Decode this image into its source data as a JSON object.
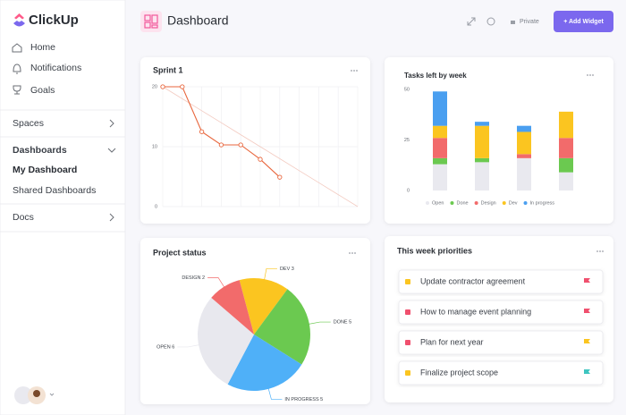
{
  "sidebar": {
    "logo": "ClickUp",
    "nav": [
      "Home",
      "Notifications",
      "Goals"
    ],
    "spaces": "Spaces",
    "dashboards": "Dashboards",
    "my_dashboard": "My Dashboard",
    "shared_dashboards": "Shared Dashboards",
    "docs": "Docs"
  },
  "header": {
    "title": "Dashboard",
    "privacy": "Private",
    "add_button": "+ Add Widget"
  },
  "chart_data": [
    {
      "type": "line",
      "title": "Sprint 1",
      "x": [
        0,
        1,
        2,
        3,
        4,
        5,
        6,
        7,
        8,
        9,
        10
      ],
      "xlim": [
        0,
        10
      ],
      "ylim": [
        0,
        20
      ],
      "yticks": [
        0,
        10,
        20
      ],
      "grid": true,
      "series": [
        {
          "color": "#f3cbc1",
          "values": [
            20,
            18,
            16,
            14,
            12,
            10,
            8,
            6,
            4,
            2,
            0
          ]
        },
        {
          "color": "#e8663d",
          "markers": true,
          "values": [
            20,
            20,
            12.5,
            10.3,
            10.3,
            7.9,
            4.9,
            null,
            null,
            null,
            null
          ]
        }
      ]
    },
    {
      "type": "stacked-bar",
      "title": "Tasks left by week",
      "categories": [
        null,
        null,
        null,
        null
      ],
      "ylim": [
        0,
        50
      ],
      "yticks": [
        0,
        25,
        50
      ],
      "series": [
        {
          "name": "Open",
          "color": "#e9e9ef",
          "values": [
            13,
            14,
            16,
            9
          ]
        },
        {
          "name": "Done",
          "color": "#6bc950",
          "values": [
            3,
            2,
            0,
            7
          ]
        },
        {
          "name": "Design",
          "color": "#f26b6b",
          "values": [
            10,
            0,
            2,
            10
          ]
        },
        {
          "name": "Dev",
          "color": "#fbc520",
          "values": [
            6,
            16,
            11,
            13
          ]
        },
        {
          "name": "In progress",
          "color": "#4a9ff0",
          "values": [
            17,
            2,
            3,
            0
          ]
        }
      ]
    },
    {
      "type": "pie",
      "title": "Project status",
      "values": [
        3,
        5,
        5,
        6,
        2
      ],
      "value_labels": [
        "DEV 3",
        "DONE 5",
        "IN PROGRESS 5",
        "OPEN 6",
        "DESIGN 2"
      ],
      "colors": [
        "#fbc520",
        "#6bc950",
        "#4fb0f8",
        "#e8e8ee",
        "#f26b6b"
      ]
    }
  ],
  "priorities": {
    "title": "This week priorities",
    "items": [
      {
        "text": "Update contractor agreement",
        "marker_color": "#fbc520",
        "flag_color": "#f0506e"
      },
      {
        "text": "How to manage event planning",
        "marker_color": "#f0506e",
        "flag_color": "#f0506e"
      },
      {
        "text": "Plan for next year",
        "marker_color": "#f0506e",
        "flag_color": "#fbc520"
      },
      {
        "text": "Finalize project scope",
        "marker_color": "#fbc520",
        "flag_color": "#3ec5c0"
      }
    ]
  }
}
